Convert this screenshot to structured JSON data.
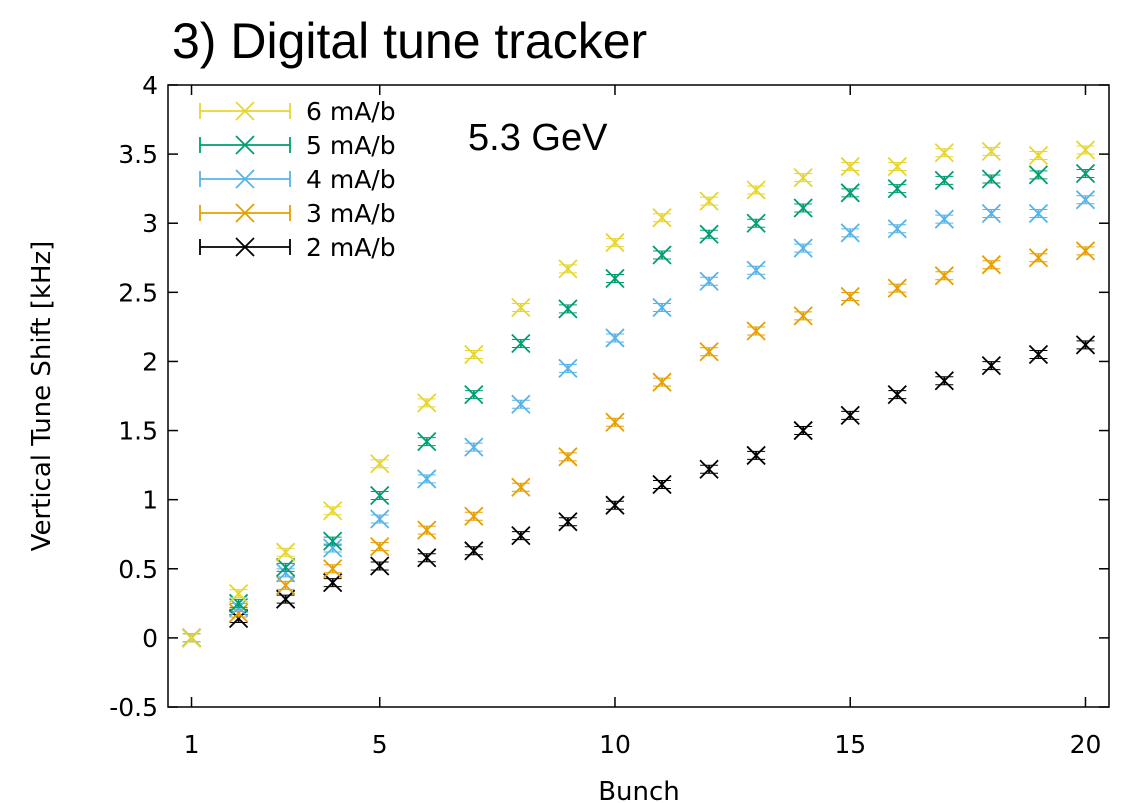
{
  "chart_data": {
    "type": "scatter",
    "title": "3) Digital tune tracker",
    "annotation": "5.3 GeV",
    "xlabel": "Bunch",
    "ylabel": "Vertical Tune Shift [kHz]",
    "xlim": [
      0.5,
      20.5
    ],
    "ylim": [
      -0.5,
      4
    ],
    "xticks": [
      1,
      5,
      10,
      15,
      20
    ],
    "yticks": [
      -0.5,
      0,
      0.5,
      1,
      1.5,
      2,
      2.5,
      3,
      3.5,
      4
    ],
    "yticklabels": [
      "-0.5",
      "0",
      "0.5",
      "1",
      "1.5",
      "2",
      "2.5",
      "3",
      "3.5",
      "4"
    ],
    "grid": false,
    "legend_position": "top-left",
    "x": [
      1,
      2,
      3,
      4,
      5,
      6,
      7,
      8,
      9,
      10,
      11,
      12,
      13,
      14,
      15,
      16,
      17,
      18,
      19,
      20
    ],
    "series": [
      {
        "name": "6 mA/b",
        "color": "#e8d630",
        "values": [
          0,
          0.32,
          0.62,
          0.92,
          1.26,
          1.7,
          2.05,
          2.39,
          2.67,
          2.86,
          3.04,
          3.16,
          3.24,
          3.33,
          3.41,
          3.41,
          3.51,
          3.52,
          3.49,
          3.53
        ]
      },
      {
        "name": "5 mA/b",
        "color": "#009e73",
        "values": [
          0,
          0.25,
          0.51,
          0.7,
          1.03,
          1.42,
          1.76,
          2.13,
          2.38,
          2.6,
          2.77,
          2.92,
          3.0,
          3.11,
          3.22,
          3.25,
          3.31,
          3.32,
          3.35,
          3.36
        ]
      },
      {
        "name": "4 mA/b",
        "color": "#56b4e9",
        "values": [
          0,
          0.22,
          0.47,
          0.65,
          0.86,
          1.15,
          1.38,
          1.69,
          1.95,
          2.17,
          2.39,
          2.58,
          2.66,
          2.82,
          2.93,
          2.96,
          3.03,
          3.07,
          3.07,
          3.17
        ]
      },
      {
        "name": "3 mA/b",
        "color": "#e69f00",
        "values": [
          0,
          0.18,
          0.38,
          0.5,
          0.66,
          0.78,
          0.88,
          1.09,
          1.31,
          1.56,
          1.85,
          2.07,
          2.22,
          2.33,
          2.47,
          2.53,
          2.62,
          2.7,
          2.75,
          2.8
        ]
      },
      {
        "name": "2 mA/b",
        "color": "#000000",
        "values": [
          0,
          0.14,
          0.28,
          0.4,
          0.52,
          0.58,
          0.63,
          0.74,
          0.84,
          0.96,
          1.11,
          1.22,
          1.32,
          1.5,
          1.61,
          1.76,
          1.86,
          1.97,
          2.05,
          2.12
        ]
      }
    ]
  }
}
